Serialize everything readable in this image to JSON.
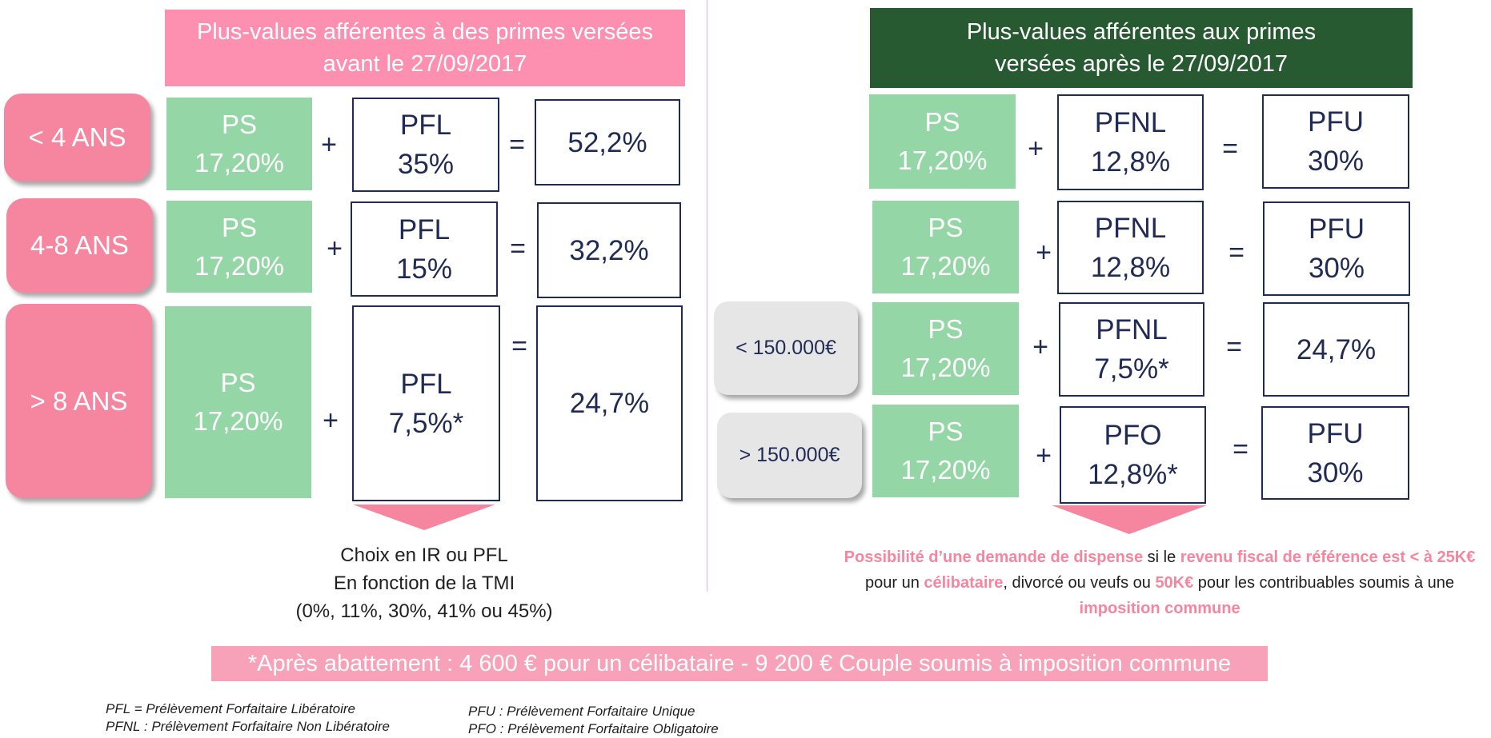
{
  "left": {
    "header": "Plus-values afférentes à des primes versées\navant le 27/09/2017",
    "rows": [
      {
        "age": "< 4 ANS",
        "ps_name": "PS",
        "ps_rate": "17,20%",
        "box_name": "PFL",
        "box_rate": "35%",
        "result": "52,2%"
      },
      {
        "age": "4-8 ANS",
        "ps_name": "PS",
        "ps_rate": "17,20%",
        "box_name": "PFL",
        "box_rate": "15%",
        "result": "32,2%"
      },
      {
        "age": "> 8 ANS",
        "ps_name": "PS",
        "ps_rate": "17,20%",
        "box_name": "PFL",
        "box_rate": "7,5%*",
        "result": "24,7%"
      }
    ],
    "note_lines": [
      "Choix en IR ou PFL",
      "En fonction de la TMI",
      "(0%, 11%, 30%, 41% ou 45%)"
    ]
  },
  "right": {
    "header": "Plus-values afférentes aux primes\nversées après le 27/09/2017",
    "rows": [
      {
        "ps_name": "PS",
        "ps_rate": "17,20%",
        "box_name": "PFNL",
        "box_rate": "12,8%",
        "result_name": "PFU",
        "result_rate": "30%"
      },
      {
        "ps_name": "PS",
        "ps_rate": "17,20%",
        "box_name": "PFNL",
        "box_rate": "12,8%",
        "result_name": "PFU",
        "result_rate": "30%"
      },
      {
        "income": "< 150.000€",
        "ps_name": "PS",
        "ps_rate": "17,20%",
        "box_name": "PFNL",
        "box_rate": "7,5%*",
        "result_name": "24,7%",
        "result_rate": ""
      },
      {
        "income": "> 150.000€",
        "ps_name": "PS",
        "ps_rate": "17,20%",
        "box_name": "PFO",
        "box_rate": "12,8%*",
        "result_name": "PFU",
        "result_rate": "30%"
      }
    ],
    "note": {
      "p1": "Possibilité d’une demande de dispense",
      "p2": " si le ",
      "p3": "revenu fiscal de référence est < à 25K€",
      "p4": " pour un ",
      "p5": "célibataire",
      "p6": ", divorcé ou veufs ou ",
      "p7": "50K€",
      "p8": " pour les contribuables soumis à une ",
      "p9": "imposition commune"
    }
  },
  "operators": {
    "plus": "+",
    "equals": "="
  },
  "footer": "*Après abattement : 4 600 € pour un célibataire - 9 200 € Couple soumis à imposition commune",
  "legend": {
    "pfl": "PFL = Prélèvement Forfaitaire Libératoire",
    "pfnl": "PFNL : Prélèvement Forfaitaire Non Libératoire",
    "pfu": "PFU : Prélèvement Forfaitaire Unique",
    "pfo": "PFO : Prélèvement Forfaitaire Obligatoire"
  },
  "colors": {
    "pink": "#f6859f",
    "green_header": "#285a32",
    "ps_green": "#94d6a5",
    "navy": "#1f2a55"
  }
}
